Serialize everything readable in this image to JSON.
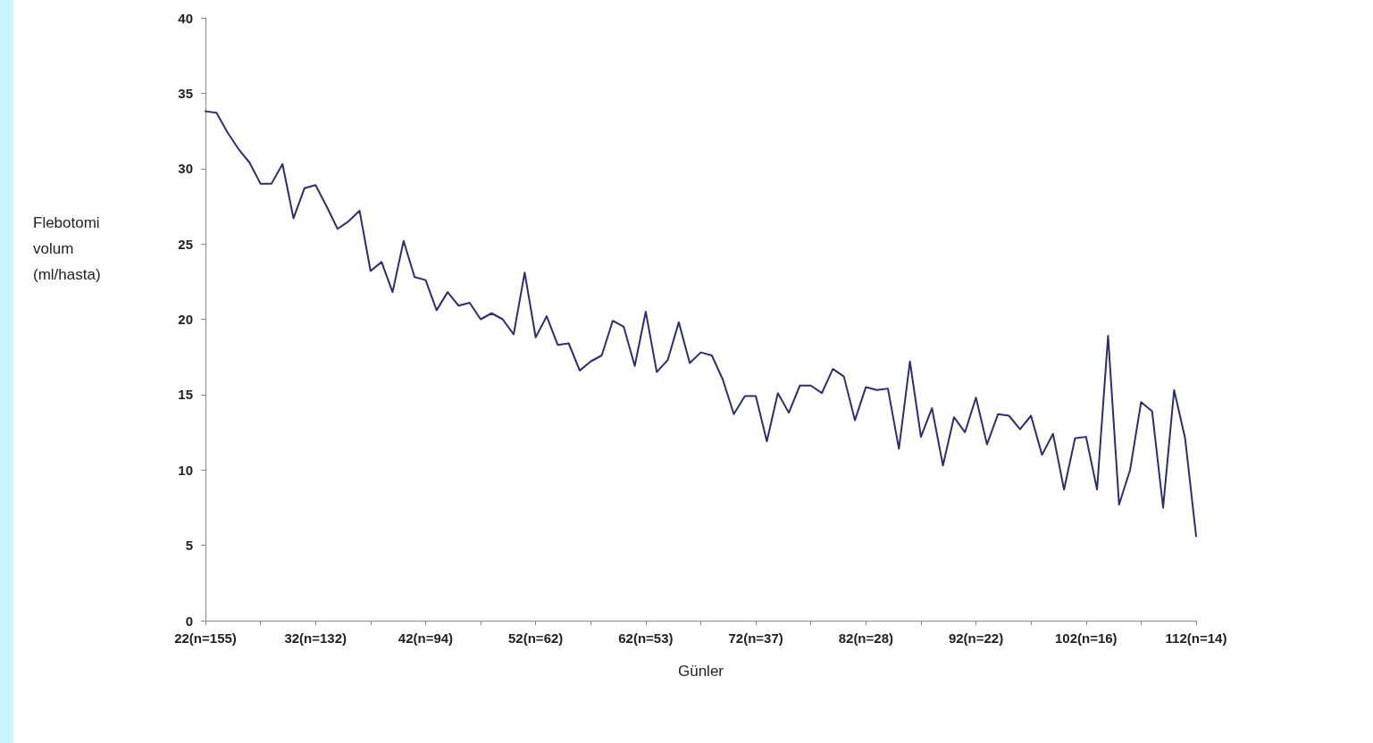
{
  "chart_data": {
    "type": "line",
    "xlabel": "Günler",
    "ylabel": "Flebotomi volum (ml/hasta)",
    "categories": [
      "22(n=155)",
      null,
      null,
      null,
      null,
      null,
      null,
      null,
      null,
      null,
      "32(n=132)",
      null,
      null,
      null,
      null,
      null,
      null,
      null,
      null,
      null,
      "42(n=94)",
      null,
      null,
      null,
      null,
      null,
      null,
      null,
      null,
      null,
      "52(n=62)",
      null,
      null,
      null,
      null,
      null,
      null,
      null,
      null,
      null,
      "62(n=53)",
      null,
      null,
      null,
      null,
      null,
      null,
      null,
      null,
      null,
      "72(n=37)",
      null,
      null,
      null,
      null,
      null,
      null,
      null,
      null,
      null,
      "82(n=28)",
      null,
      null,
      null,
      null,
      null,
      null,
      null,
      null,
      null,
      "92(n=22)",
      null,
      null,
      null,
      null,
      null,
      null,
      null,
      null,
      null,
      "102(n=16)",
      null,
      null,
      null,
      null,
      null,
      null,
      null,
      null,
      null,
      "112(n=14)"
    ],
    "series": [
      {
        "color": "#2e2e6e",
        "values": [
          33.8,
          33.7,
          32.4,
          31.3,
          30.4,
          29.0,
          29.0,
          30.3,
          26.7,
          28.7,
          28.9,
          27.5,
          26.0,
          26.5,
          27.2,
          23.2,
          23.8,
          21.8,
          25.2,
          22.8,
          22.6,
          20.6,
          21.8,
          20.9,
          21.1,
          20.0,
          20.4,
          20.0,
          19.0,
          23.1,
          18.8,
          20.2,
          18.3,
          18.4,
          16.6,
          17.2,
          17.6,
          19.9,
          19.5,
          16.9,
          20.5,
          16.5,
          17.3,
          19.8,
          17.1,
          17.8,
          17.6,
          16.0,
          13.7,
          14.9,
          14.9,
          11.9,
          15.1,
          13.8,
          15.6,
          15.6,
          15.1,
          16.7,
          16.2,
          13.3,
          15.5,
          15.3,
          15.4,
          11.4,
          17.2,
          12.2,
          14.1,
          10.3,
          13.5,
          12.5,
          14.8,
          11.7,
          13.7,
          13.6,
          12.7,
          13.6,
          11.0,
          12.4,
          8.7,
          12.1,
          12.2,
          8.7,
          18.9,
          7.7,
          10.0,
          14.5,
          13.9,
          7.5,
          15.3,
          12.1,
          5.6
        ]
      }
    ],
    "ylim": [
      0,
      40
    ],
    "yticks": [
      0,
      5,
      10,
      15,
      20,
      25,
      30,
      35,
      40
    ],
    "grid": false,
    "marker": "none",
    "line_style": "solid"
  }
}
